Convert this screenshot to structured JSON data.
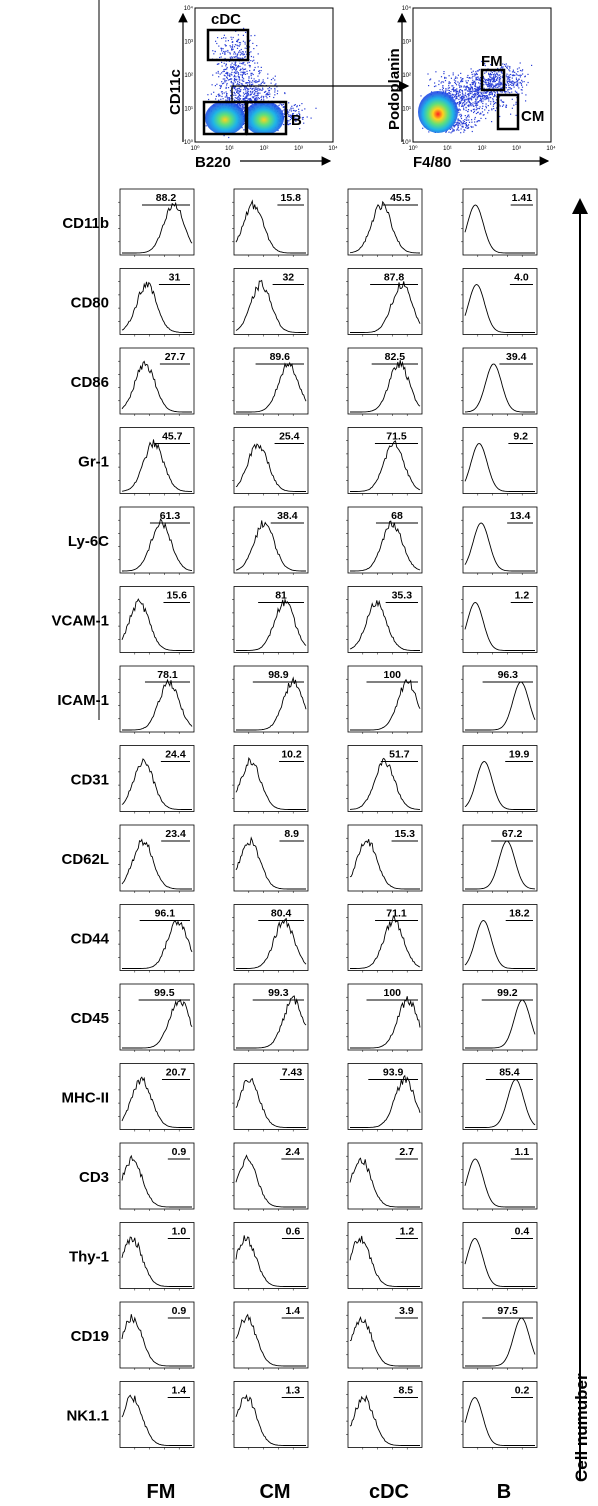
{
  "chart_data": [
    {
      "type": "scatter",
      "panel": "gating-left",
      "xlabel": "B220",
      "ylabel": "CD11c",
      "tick_labels": [
        "10⁰",
        "10¹",
        "10²",
        "10³",
        "10⁴"
      ],
      "gates": [
        "cDC",
        "",
        "B"
      ]
    },
    {
      "type": "scatter",
      "panel": "gating-right",
      "xlabel": "F4/80",
      "ylabel": "Podoplanin",
      "tick_labels": [
        "10⁰",
        "10¹",
        "10²",
        "10³",
        "10⁴"
      ],
      "gates": [
        "FM",
        "CM"
      ]
    },
    {
      "type": "histogram-grid",
      "columns": [
        "FM",
        "CM",
        "cDC",
        "B"
      ],
      "right_axis_label": "Cell numuber",
      "rows": [
        {
          "marker": "CD11b",
          "values": [
            "88.2",
            "15.8",
            "45.5",
            "1.41"
          ]
        },
        {
          "marker": "CD80",
          "values": [
            "31",
            "32",
            "87.8",
            "4.0"
          ]
        },
        {
          "marker": "CD86",
          "values": [
            "27.7",
            "89.6",
            "82.5",
            "39.4"
          ]
        },
        {
          "marker": "Gr-1",
          "values": [
            "45.7",
            "25.4",
            "71.5",
            "9.2"
          ]
        },
        {
          "marker": "Ly-6C",
          "values": [
            "61.3",
            "38.4",
            "68",
            "13.4"
          ]
        },
        {
          "marker": "VCAM-1",
          "values": [
            "15.6",
            "81",
            "35.3",
            "1.2"
          ]
        },
        {
          "marker": "ICAM-1",
          "values": [
            "78.1",
            "98.9",
            "100",
            "96.3"
          ]
        },
        {
          "marker": "CD31",
          "values": [
            "24.4",
            "10.2",
            "51.7",
            "19.9"
          ]
        },
        {
          "marker": "CD62L",
          "values": [
            "23.4",
            "8.9",
            "15.3",
            "67.2"
          ]
        },
        {
          "marker": "CD44",
          "values": [
            "96.1",
            "80.4",
            "71.1",
            "18.2"
          ]
        },
        {
          "marker": "CD45",
          "values": [
            "99.5",
            "99.3",
            "100",
            "99.2"
          ]
        },
        {
          "marker": "MHC-II",
          "values": [
            "20.7",
            "7.43",
            "93.9",
            "85.4"
          ]
        },
        {
          "marker": "CD3",
          "values": [
            "0.9",
            "2.4",
            "2.7",
            "1.1"
          ]
        },
        {
          "marker": "Thy-1",
          "values": [
            "1.0",
            "0.6",
            "1.2",
            "0.4"
          ]
        },
        {
          "marker": "CD19",
          "values": [
            "0.9",
            "1.4",
            "3.9",
            "97.5"
          ]
        },
        {
          "marker": "NK1.1",
          "values": [
            "1.4",
            "1.3",
            "8.5",
            "0.2"
          ]
        }
      ]
    }
  ]
}
